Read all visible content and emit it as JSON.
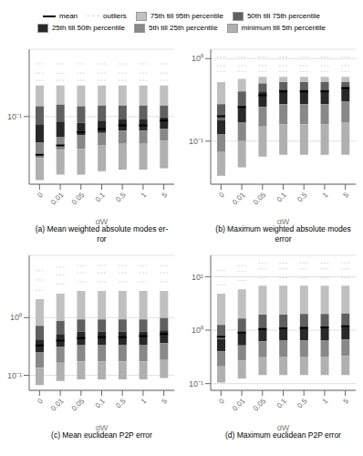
{
  "chart_data": [
    {
      "type": "bar",
      "title": "(a) Mean weighted absolute modes er-\nror",
      "x_label": "αW",
      "categories": [
        "0",
        "0.01",
        "0.05",
        "0.1",
        "0.5",
        "1",
        "5"
      ],
      "log": "y",
      "ylim": [
        0.018,
        0.55
      ],
      "yticks": [
        {
          "value": 0.1,
          "label": "10⁻¹"
        }
      ],
      "grid": true,
      "legend": "top",
      "series": [
        {
          "name": "mean",
          "type": "line",
          "color": "#000000",
          "values": [
            0.038,
            0.048,
            0.067,
            0.073,
            0.08,
            0.08,
            0.09
          ]
        },
        {
          "name": "outliers",
          "type": "line",
          "line_style": "dashed",
          "color": "#d8d8d8",
          "values": [
            [
              0.38,
              0.3,
              0.25
            ],
            [
              0.38,
              0.3,
              0.25
            ],
            [
              0.38,
              0.3,
              0.25
            ],
            [
              0.38,
              0.3,
              0.25
            ],
            [
              0.38,
              0.3,
              0.25
            ],
            [
              0.38,
              0.3,
              0.25
            ],
            [
              0.38,
              0.3,
              0.25
            ]
          ]
        },
        {
          "name": "75th till 95th percentile",
          "type": "bar",
          "color": "#c0c0c0",
          "values": [
            [
              0.13,
              0.22
            ],
            [
              0.135,
              0.22
            ],
            [
              0.13,
              0.22
            ],
            [
              0.132,
              0.22
            ],
            [
              0.132,
              0.22
            ],
            [
              0.132,
              0.22
            ],
            [
              0.132,
              0.22
            ]
          ]
        },
        {
          "name": "50th till 75th percentile",
          "type": "bar",
          "color": "#606060",
          "values": [
            [
              0.082,
              0.13
            ],
            [
              0.088,
              0.135
            ],
            [
              0.085,
              0.13
            ],
            [
              0.09,
              0.132
            ],
            [
              0.093,
              0.132
            ],
            [
              0.093,
              0.132
            ],
            [
              0.098,
              0.132
            ]
          ]
        },
        {
          "name": "25th till 50th percentile",
          "type": "bar",
          "color": "#282828",
          "values": [
            [
              0.052,
              0.082
            ],
            [
              0.06,
              0.088
            ],
            [
              0.062,
              0.085
            ],
            [
              0.066,
              0.09
            ],
            [
              0.07,
              0.093
            ],
            [
              0.07,
              0.093
            ],
            [
              0.073,
              0.098
            ]
          ]
        },
        {
          "name": "5th till 25th percentile",
          "type": "bar",
          "color": "#888888",
          "values": [
            [
              0.035,
              0.052
            ],
            [
              0.043,
              0.06
            ],
            [
              0.044,
              0.062
            ],
            [
              0.048,
              0.066
            ],
            [
              0.051,
              0.07
            ],
            [
              0.051,
              0.07
            ],
            [
              0.054,
              0.073
            ]
          ]
        },
        {
          "name": "minimum till 5th percentile",
          "type": "bar",
          "color": "#b0b0b0",
          "values": [
            [
              0.02,
              0.035
            ],
            [
              0.023,
              0.043
            ],
            [
              0.023,
              0.044
            ],
            [
              0.025,
              0.048
            ],
            [
              0.026,
              0.051
            ],
            [
              0.026,
              0.051
            ],
            [
              0.027,
              0.054
            ]
          ]
        }
      ]
    },
    {
      "type": "bar",
      "title": "(b) Maximum weighted absolute modes\nerror",
      "x_label": "αW",
      "categories": [
        "0",
        "0.01",
        "0.05",
        "0.1",
        "0.5",
        "1",
        "5"
      ],
      "log": "y",
      "ylim": [
        0.03,
        1.3
      ],
      "yticks": [
        {
          "value": 0.1,
          "label": "10⁻¹"
        },
        {
          "value": 1.0,
          "label": "10⁰"
        }
      ],
      "grid": true,
      "series": [
        {
          "name": "mean",
          "type": "line",
          "color": "#000000",
          "values": [
            0.2,
            0.26,
            0.36,
            0.4,
            0.4,
            0.4,
            0.44
          ]
        },
        {
          "name": "outliers",
          "type": "line",
          "line_style": "dashed",
          "color": "#d8d8d8",
          "values": [
            [
              1.05,
              0.82,
              0.7
            ],
            [
              1.05,
              0.82,
              0.7
            ],
            [
              1.05,
              0.82,
              0.7
            ],
            [
              1.05,
              0.82,
              0.7
            ],
            [
              1.05,
              0.82,
              0.7
            ],
            [
              1.05,
              0.82,
              0.7
            ],
            [
              1.05,
              0.82,
              0.7
            ]
          ]
        },
        {
          "name": "75th till 95th percentile",
          "type": "bar",
          "color": "#c0c0c0",
          "values": [
            [
              0.28,
              0.52
            ],
            [
              0.4,
              0.57
            ],
            [
              0.5,
              0.6
            ],
            [
              0.52,
              0.6
            ],
            [
              0.52,
              0.6
            ],
            [
              0.52,
              0.6
            ],
            [
              0.52,
              0.6
            ]
          ]
        },
        {
          "name": "50th till 75th percentile",
          "type": "bar",
          "color": "#606060",
          "values": [
            [
              0.18,
              0.28
            ],
            [
              0.26,
              0.4
            ],
            [
              0.4,
              0.5
            ],
            [
              0.42,
              0.52
            ],
            [
              0.42,
              0.52
            ],
            [
              0.42,
              0.52
            ],
            [
              0.44,
              0.52
            ]
          ]
        },
        {
          "name": "25th till 50th percentile",
          "type": "bar",
          "color": "#282828",
          "values": [
            [
              0.12,
              0.18
            ],
            [
              0.17,
              0.26
            ],
            [
              0.26,
              0.4
            ],
            [
              0.28,
              0.42
            ],
            [
              0.28,
              0.42
            ],
            [
              0.28,
              0.42
            ],
            [
              0.3,
              0.44
            ]
          ]
        },
        {
          "name": "5th till 25th percentile",
          "type": "bar",
          "color": "#888888",
          "values": [
            [
              0.075,
              0.12
            ],
            [
              0.1,
              0.17
            ],
            [
              0.15,
              0.26
            ],
            [
              0.16,
              0.28
            ],
            [
              0.16,
              0.28
            ],
            [
              0.16,
              0.28
            ],
            [
              0.17,
              0.3
            ]
          ]
        },
        {
          "name": "minimum till 5th percentile",
          "type": "bar",
          "color": "#b0b0b0",
          "values": [
            [
              0.038,
              0.075
            ],
            [
              0.048,
              0.1
            ],
            [
              0.065,
              0.15
            ],
            [
              0.068,
              0.16
            ],
            [
              0.068,
              0.16
            ],
            [
              0.068,
              0.16
            ],
            [
              0.068,
              0.17
            ]
          ]
        }
      ]
    },
    {
      "type": "bar",
      "title": "(c) Mean euclidean P2P error",
      "x_label": "αW",
      "categories": [
        "0",
        "0.01",
        "0.05",
        "0.1",
        "0.5",
        "1",
        "5"
      ],
      "log": "y",
      "ylim": [
        0.055,
        12.0
      ],
      "yticks": [
        {
          "value": 0.1,
          "label": "10⁻¹"
        },
        {
          "value": 1.0,
          "label": "10⁰"
        }
      ],
      "grid": true,
      "series": [
        {
          "name": "mean",
          "type": "line",
          "color": "#000000",
          "values": [
            0.33,
            0.4,
            0.44,
            0.46,
            0.46,
            0.48,
            0.52
          ]
        },
        {
          "name": "outliers",
          "type": "line",
          "line_style": "dashed",
          "color": "#d8d8d8",
          "values": [
            [
              6.5,
              4.5,
              3.0
            ],
            [
              7.5,
              5.5,
              3.8
            ],
            [
              8.0,
              6.0,
              4.2
            ],
            [
              8.0,
              6.0,
              4.2
            ],
            [
              8.0,
              6.0,
              4.2
            ],
            [
              8.0,
              6.0,
              4.2
            ],
            [
              8.0,
              6.0,
              4.2
            ]
          ]
        },
        {
          "name": "75th till 95th percentile",
          "type": "bar",
          "color": "#c0c0c0",
          "values": [
            [
              0.72,
              2.1
            ],
            [
              0.87,
              2.6
            ],
            [
              0.93,
              2.9
            ],
            [
              0.93,
              2.9
            ],
            [
              0.93,
              2.9
            ],
            [
              0.93,
              2.9
            ],
            [
              0.98,
              2.9
            ]
          ]
        },
        {
          "name": "50th till 75th percentile",
          "type": "bar",
          "color": "#606060",
          "values": [
            [
              0.42,
              0.72
            ],
            [
              0.52,
              0.87
            ],
            [
              0.57,
              0.93
            ],
            [
              0.57,
              0.93
            ],
            [
              0.57,
              0.93
            ],
            [
              0.57,
              0.93
            ],
            [
              0.6,
              0.98
            ]
          ]
        },
        {
          "name": "25th till 50th percentile",
          "type": "bar",
          "color": "#282828",
          "values": [
            [
              0.25,
              0.42
            ],
            [
              0.31,
              0.52
            ],
            [
              0.34,
              0.57
            ],
            [
              0.34,
              0.57
            ],
            [
              0.34,
              0.57
            ],
            [
              0.34,
              0.57
            ],
            [
              0.36,
              0.6
            ]
          ]
        },
        {
          "name": "5th till 25th percentile",
          "type": "bar",
          "color": "#888888",
          "values": [
            [
              0.135,
              0.25
            ],
            [
              0.165,
              0.31
            ],
            [
              0.175,
              0.34
            ],
            [
              0.175,
              0.34
            ],
            [
              0.175,
              0.34
            ],
            [
              0.175,
              0.34
            ],
            [
              0.185,
              0.36
            ]
          ]
        },
        {
          "name": "minimum till 5th percentile",
          "type": "bar",
          "color": "#b0b0b0",
          "values": [
            [
              0.068,
              0.135
            ],
            [
              0.08,
              0.165
            ],
            [
              0.085,
              0.175
            ],
            [
              0.085,
              0.175
            ],
            [
              0.085,
              0.175
            ],
            [
              0.085,
              0.175
            ],
            [
              0.09,
              0.185
            ]
          ]
        }
      ]
    },
    {
      "type": "bar",
      "title": "(d) Maximum euclidean P2P error",
      "x_label": "αW",
      "categories": [
        "0",
        "0.01",
        "0.05",
        "0.1",
        "0.5",
        "1",
        "5"
      ],
      "log": "y",
      "ylim": [
        0.075,
        25.0
      ],
      "yticks": [
        {
          "value": 0.1,
          "label": "10⁻¹"
        },
        {
          "value": 1.0,
          "label": "10⁰"
        },
        {
          "value": 10.0,
          "label": "10¹"
        }
      ],
      "grid": true,
      "series": [
        {
          "name": "mean",
          "type": "line",
          "color": "#000000",
          "values": [
            0.75,
            0.9,
            1.05,
            1.08,
            1.1,
            1.12,
            1.18
          ]
        },
        {
          "name": "outliers",
          "type": "line",
          "line_style": "dashed",
          "color": "#d8d8d8",
          "values": [
            [
              13.0,
              10.0,
              7.0
            ],
            [
              16.0,
              12.5,
              8.5
            ],
            [
              18.0,
              14.0,
              9.5
            ],
            [
              18.0,
              14.0,
              9.5
            ],
            [
              18.0,
              14.0,
              9.5
            ],
            [
              18.0,
              14.0,
              9.5
            ],
            [
              18.0,
              14.0,
              9.5
            ]
          ]
        },
        {
          "name": "75th till 95th percentile",
          "type": "bar",
          "color": "#c0c0c0",
          "values": [
            [
              1.25,
              4.8
            ],
            [
              1.65,
              5.8
            ],
            [
              1.95,
              6.8
            ],
            [
              1.95,
              6.8
            ],
            [
              2.0,
              6.8
            ],
            [
              2.0,
              6.8
            ],
            [
              2.05,
              6.8
            ]
          ]
        },
        {
          "name": "50th till 75th percentile",
          "type": "bar",
          "color": "#606060",
          "values": [
            [
              0.68,
              1.25
            ],
            [
              0.88,
              1.65
            ],
            [
              1.05,
              1.95
            ],
            [
              1.08,
              1.95
            ],
            [
              1.08,
              2.0
            ],
            [
              1.08,
              2.0
            ],
            [
              1.12,
              2.05
            ]
          ]
        },
        {
          "name": "25th till 50th percentile",
          "type": "bar",
          "color": "#282828",
          "values": [
            [
              0.4,
              0.68
            ],
            [
              0.52,
              0.88
            ],
            [
              0.62,
              1.05
            ],
            [
              0.64,
              1.08
            ],
            [
              0.64,
              1.08
            ],
            [
              0.64,
              1.08
            ],
            [
              0.67,
              1.12
            ]
          ]
        },
        {
          "name": "5th till 25th percentile",
          "type": "bar",
          "color": "#888888",
          "values": [
            [
              0.21,
              0.4
            ],
            [
              0.27,
              0.52
            ],
            [
              0.31,
              0.62
            ],
            [
              0.32,
              0.64
            ],
            [
              0.32,
              0.64
            ],
            [
              0.32,
              0.64
            ],
            [
              0.33,
              0.67
            ]
          ]
        },
        {
          "name": "minimum till 5th percentile",
          "type": "bar",
          "color": "#b0b0b0",
          "values": [
            [
              0.105,
              0.21
            ],
            [
              0.125,
              0.27
            ],
            [
              0.145,
              0.31
            ],
            [
              0.145,
              0.32
            ],
            [
              0.145,
              0.32
            ],
            [
              0.145,
              0.32
            ],
            [
              0.145,
              0.33
            ]
          ]
        }
      ]
    }
  ]
}
